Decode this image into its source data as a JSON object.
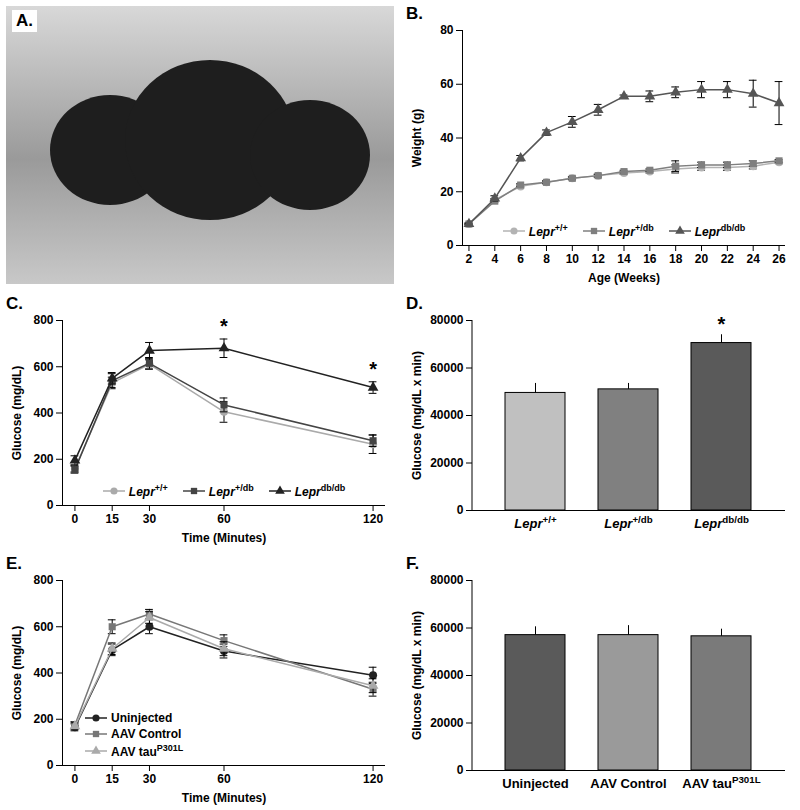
{
  "photo": {
    "label": "A."
  },
  "chart_data": [
    {
      "type": "line",
      "title": "B.",
      "xlabel": "Age (Weeks)",
      "ylabel": "Weight (g)",
      "x": [
        2,
        4,
        6,
        8,
        10,
        12,
        14,
        16,
        18,
        20,
        22,
        24,
        26
      ],
      "xlim": [
        1.5,
        26.5
      ],
      "xticks": [
        2,
        4,
        6,
        8,
        10,
        12,
        14,
        16,
        18,
        20,
        22,
        24,
        26
      ],
      "ylim": [
        0,
        80
      ],
      "yticks": [
        0,
        20,
        40,
        60,
        80
      ],
      "legend": "bottom",
      "series": [
        {
          "name": "Lepr+/+",
          "color": "#b3b3b3",
          "marker": "circle",
          "values": [
            8,
            17,
            22,
            23.5,
            25,
            26,
            27,
            27.5,
            28.5,
            29,
            29,
            29.5,
            31
          ],
          "errors": [
            0.3,
            0.5,
            0.5,
            0.5,
            0.5,
            0.5,
            0.5,
            0.5,
            1.5,
            1,
            1,
            1,
            0.5
          ]
        },
        {
          "name": "Lepr+/db",
          "color": "#7f7f7f",
          "marker": "square",
          "values": [
            8,
            16.5,
            22.5,
            23.5,
            25,
            26,
            27.5,
            28,
            29.5,
            30,
            30,
            30.5,
            31.5
          ],
          "errors": [
            0.3,
            0.5,
            0.5,
            0.5,
            0.5,
            0.5,
            0.5,
            0.5,
            2,
            1,
            1,
            1,
            0.5
          ]
        },
        {
          "name": "Leprdb/db",
          "color": "#555555",
          "marker": "triangle",
          "values": [
            8,
            17.5,
            32.5,
            42,
            46,
            50.5,
            55.5,
            55.5,
            57,
            58,
            58,
            56.5,
            53
          ],
          "errors": [
            0.3,
            1,
            1,
            1,
            2,
            2,
            0.5,
            2,
            2,
            3,
            3,
            5,
            8
          ]
        }
      ]
    },
    {
      "type": "line",
      "title": "C.",
      "xlabel": "Time (Minutes)",
      "ylabel": "Glucose (mg/dL)",
      "x": [
        0,
        15,
        30,
        60,
        120
      ],
      "xlim": [
        -5,
        125
      ],
      "xticks": [
        0,
        15,
        30,
        60,
        120
      ],
      "ylim": [
        0,
        800
      ],
      "yticks": [
        0,
        200,
        400,
        600,
        800
      ],
      "legend": "bottom",
      "annotations": [
        {
          "x": 60,
          "text": "*"
        },
        {
          "x": 120,
          "text": "*"
        }
      ],
      "series": [
        {
          "name": "Lepr+/+",
          "color": "#aaaaaa",
          "marker": "circle",
          "values": [
            160,
            530,
            610,
            405,
            265
          ],
          "errors": [
            15,
            25,
            20,
            45,
            40
          ]
        },
        {
          "name": "Lepr+/db",
          "color": "#444444",
          "marker": "square",
          "values": [
            155,
            540,
            615,
            435,
            280
          ],
          "errors": [
            15,
            30,
            25,
            30,
            25
          ]
        },
        {
          "name": "Leprdb/db",
          "color": "#222222",
          "marker": "triangle",
          "values": [
            195,
            550,
            670,
            680,
            510
          ],
          "errors": [
            20,
            25,
            35,
            40,
            25
          ]
        }
      ]
    },
    {
      "type": "bar",
      "title": "D.",
      "ylabel": "Glucose (mg/dL x min)",
      "categories": [
        "Lepr+/+",
        "Lepr+/db",
        "Leprdb/db"
      ],
      "values": [
        49500,
        51000,
        70500
      ],
      "errors": [
        4000,
        2500,
        3500
      ],
      "colors": [
        "#c0c0c0",
        "#808080",
        "#5a5a5a"
      ],
      "ylim": [
        0,
        80000
      ],
      "yticks": [
        0,
        20000,
        40000,
        60000,
        80000
      ],
      "annotations": [
        {
          "x": "Leprdb/db",
          "text": "*"
        }
      ]
    },
    {
      "type": "line",
      "title": "E.",
      "xlabel": "Time (Minutes)",
      "ylabel": "Glucose (mg/dL)",
      "x": [
        0,
        15,
        30,
        60,
        120
      ],
      "xlim": [
        -5,
        125
      ],
      "xticks": [
        0,
        15,
        30,
        60,
        120
      ],
      "ylim": [
        0,
        800
      ],
      "yticks": [
        0,
        200,
        400,
        600,
        800
      ],
      "legend": "bottom left",
      "series": [
        {
          "name": "Uninjected",
          "color": "#222222",
          "marker": "circle",
          "values": [
            165,
            500,
            600,
            495,
            390
          ],
          "errors": [
            15,
            25,
            30,
            30,
            35
          ]
        },
        {
          "name": "AAV Control",
          "color": "#777777",
          "marker": "square",
          "values": [
            175,
            600,
            655,
            540,
            330
          ],
          "errors": [
            15,
            30,
            20,
            25,
            30
          ]
        },
        {
          "name": "AAV tauP301L",
          "color": "#aaaaaa",
          "marker": "triangle",
          "values": [
            170,
            505,
            640,
            505,
            345
          ],
          "errors": [
            15,
            25,
            25,
            30,
            30
          ]
        }
      ]
    },
    {
      "type": "bar",
      "title": "F.",
      "ylabel": "Glucose (mg/dL x min)",
      "categories": [
        "Uninjected",
        "AAV Control",
        "AAV tauP301L"
      ],
      "values": [
        57000,
        57000,
        56500
      ],
      "errors": [
        3500,
        4000,
        3000
      ],
      "colors": [
        "#5a5a5a",
        "#9a9a9a",
        "#7a7a7a"
      ],
      "ylim": [
        0,
        80000
      ],
      "yticks": [
        0,
        20000,
        40000,
        60000,
        80000
      ]
    }
  ]
}
